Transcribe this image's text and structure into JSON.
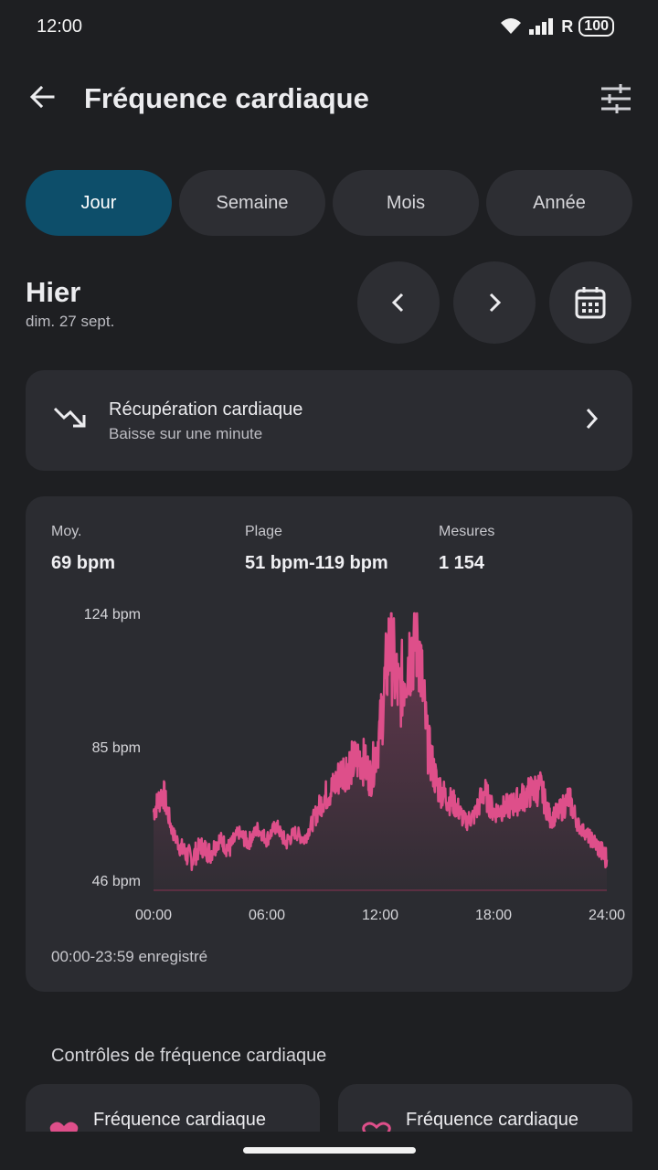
{
  "status_bar": {
    "time": "12:00",
    "signal_label": "R",
    "battery": "100"
  },
  "header": {
    "title": "Fréquence cardiaque"
  },
  "tabs": [
    {
      "label": "Jour",
      "active": true
    },
    {
      "label": "Semaine",
      "active": false
    },
    {
      "label": "Mois",
      "active": false
    },
    {
      "label": "Année",
      "active": false
    }
  ],
  "date": {
    "title": "Hier",
    "subtitle": "dim. 27 sept."
  },
  "recovery": {
    "title": "Récupération cardiaque",
    "subtitle": "Baisse sur une minute"
  },
  "stats": {
    "avg_label": "Moy.",
    "avg_value": "69 bpm",
    "range_label": "Plage",
    "range_value": "51 bpm-119 bpm",
    "count_label": "Mesures",
    "count_value": "1 154"
  },
  "chart_data": {
    "type": "line",
    "y_ticks": [
      "124 bpm",
      "85 bpm",
      "46 bpm"
    ],
    "x_ticks": [
      "00:00",
      "06:00",
      "12:00",
      "18:00",
      "24:00"
    ],
    "ylim": [
      46,
      124
    ],
    "xlim": [
      0,
      24
    ],
    "line_color": "#de4f8a",
    "x": [
      0,
      0.5,
      1,
      1.5,
      2,
      2.5,
      3,
      3.5,
      4,
      4.5,
      5,
      5.5,
      6,
      6.5,
      7,
      7.5,
      8,
      8.5,
      9,
      9.5,
      10,
      10.5,
      11,
      11.5,
      12,
      12.5,
      13,
      13.5,
      14,
      14.5,
      15,
      15.5,
      16,
      16.5,
      17,
      17.5,
      18,
      18.5,
      19,
      19.5,
      20,
      20.5,
      21,
      21.5,
      22,
      22.5,
      23,
      23.5,
      24
    ],
    "y": [
      66,
      72,
      60,
      55,
      52,
      56,
      54,
      58,
      55,
      60,
      57,
      61,
      58,
      62,
      57,
      60,
      58,
      64,
      70,
      73,
      78,
      80,
      82,
      76,
      90,
      116,
      100,
      112,
      118,
      86,
      74,
      70,
      68,
      63,
      65,
      72,
      66,
      67,
      68,
      70,
      72,
      73,
      64,
      66,
      70,
      62,
      59,
      56,
      52
    ]
  },
  "chart_footer": "00:00-23:59 enregistré",
  "controls": {
    "section_title": "Contrôles de fréquence cardiaque",
    "cards": [
      {
        "title": "Fréquence cardiaque"
      },
      {
        "title": "Fréquence cardiaque"
      }
    ]
  }
}
